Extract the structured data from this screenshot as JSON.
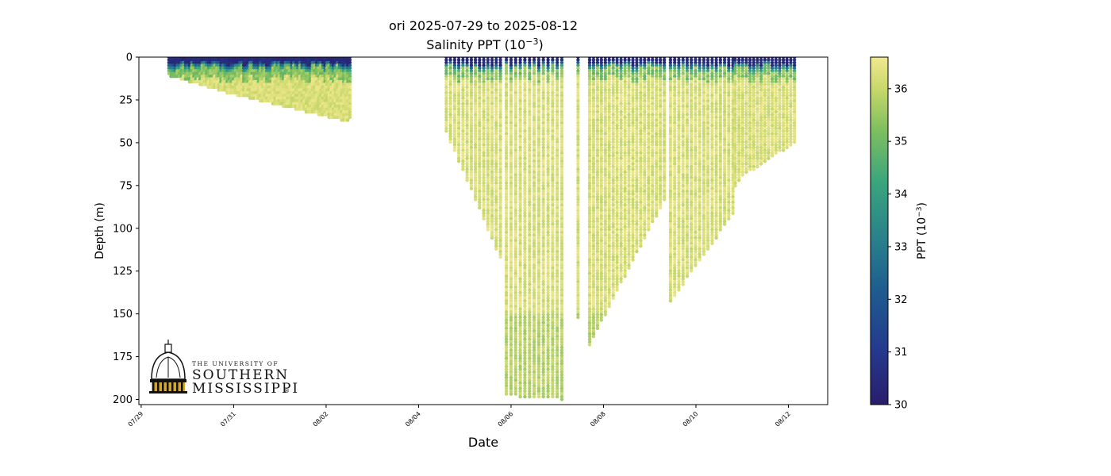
{
  "chart_data": {
    "type": "scatter",
    "title_line1": "ori 2025-07-29 to 2025-08-12",
    "title_line2_prefix": "Salinity PPT (10",
    "title_line2_sup": "−3",
    "title_line2_suffix": ")",
    "xlabel": "Date",
    "ylabel": "Depth (m)",
    "x_start": "07/29",
    "x_end": "08/13",
    "xlim_days": [
      -0.05,
      14.85
    ],
    "ylim": [
      0,
      203
    ],
    "y_inverted": true,
    "yticks": [
      0,
      25,
      50,
      75,
      100,
      125,
      150,
      175,
      200
    ],
    "xticks": [
      {
        "day": 0,
        "label": "07/29"
      },
      {
        "day": 2,
        "label": "07/31"
      },
      {
        "day": 4,
        "label": "08/02"
      },
      {
        "day": 6,
        "label": "08/04"
      },
      {
        "day": 8,
        "label": "08/06"
      },
      {
        "day": 10,
        "label": "08/08"
      },
      {
        "day": 12,
        "label": "08/10"
      },
      {
        "day": 14,
        "label": "08/12"
      }
    ],
    "colorbar": {
      "label_prefix": "PPT (10",
      "label_sup": "−3",
      "label_suffix": ")",
      "vmin": 30,
      "vmax": 36.6,
      "ticks": [
        30,
        31,
        32,
        33,
        34,
        35,
        36
      ],
      "colormap": "haline"
    },
    "profiles_max_depth_by_period": [
      {
        "from_day": 0.6,
        "to_day": 2.0,
        "max_depth_m": [
          11,
          22
        ]
      },
      {
        "from_day": 2.0,
        "to_day": 4.5,
        "max_depth_m": [
          22,
          38
        ]
      },
      {
        "from_day": 4.5,
        "to_day": 6.3,
        "max_depth_m": [
          36,
          44
        ]
      },
      {
        "from_day": 6.6,
        "to_day": 7.8,
        "max_depth_m": [
          44,
          120
        ]
      },
      {
        "from_day": 7.9,
        "to_day": 9.1,
        "max_depth_m": [
          198,
          200
        ]
      },
      {
        "from_day": 9.4,
        "to_day": 9.5,
        "max_depth_m": [
          152,
          152
        ]
      },
      {
        "from_day": 9.7,
        "to_day": 11.4,
        "max_depth_m": [
          168,
          80
        ]
      },
      {
        "from_day": 11.4,
        "to_day": 12.8,
        "max_depth_m": [
          145,
          92
        ]
      },
      {
        "from_day": 12.8,
        "to_day": 13.0,
        "max_depth_m": [
          78,
          70
        ]
      },
      {
        "from_day": 13.0,
        "to_day": 14.2,
        "max_depth_m": [
          70,
          49
        ]
      }
    ],
    "typical_values": {
      "surface_salinity_ppt": 30.2,
      "mixed_layer_depth_m": [
        4,
        10
      ],
      "deep_salinity_ppt": 36.2
    }
  },
  "logo": {
    "line1": "THE UNIVERSITY OF",
    "line2": "SOUTHERN",
    "line3": "MISSISSIPPI",
    "mark": "®"
  }
}
